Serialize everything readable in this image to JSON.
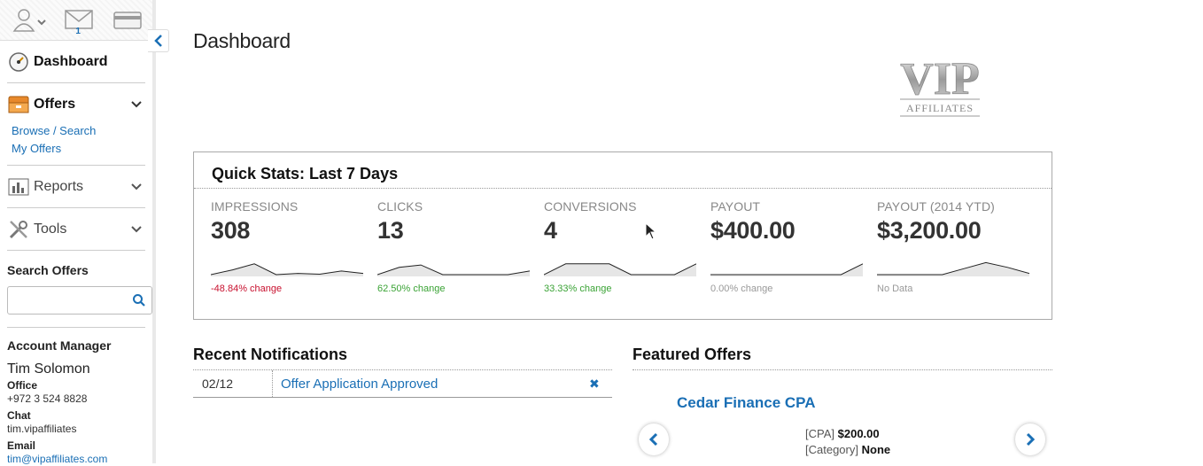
{
  "sidebar": {
    "topbar": {
      "messages_count": "1"
    },
    "nav": {
      "dashboard": "Dashboard",
      "offers": "Offers",
      "offers_sub": [
        "Browse / Search",
        "My Offers"
      ],
      "reports": "Reports",
      "tools": "Tools"
    },
    "search": {
      "label": "Search Offers",
      "value": ""
    },
    "account_manager": {
      "heading": "Account Manager",
      "name": "Tim Solomon",
      "office_label": "Office",
      "office": "+972 3 524 8828",
      "chat_label": "Chat",
      "chat": "tim.vipaffiliates",
      "email_label": "Email",
      "email": "tim@vipaffiliates.com"
    }
  },
  "main": {
    "title": "Dashboard",
    "logo": {
      "top": "VIP",
      "bottom": "AFFILIATES"
    },
    "quick_stats": {
      "title": "Quick Stats: Last 7 Days",
      "items": [
        {
          "label": "IMPRESSIONS",
          "value": "308",
          "change": "-48.84% change",
          "change_type": "neg",
          "spark": [
            0.0,
            0.2,
            0.45,
            0.0,
            0.05,
            0.02,
            0.15,
            0.05
          ]
        },
        {
          "label": "CLICKS",
          "value": "13",
          "change": "62.50% change",
          "change_type": "pos",
          "spark": [
            0.0,
            0.3,
            0.4,
            0.0,
            0.0,
            0.0,
            0.0,
            0.15
          ]
        },
        {
          "label": "CONVERSIONS",
          "value": "4",
          "change": "33.33% change",
          "change_type": "pos",
          "spark": [
            0.0,
            0.45,
            0.45,
            0.45,
            0.0,
            0.0,
            0.0,
            0.45
          ]
        },
        {
          "label": "PAYOUT",
          "value": "$400.00",
          "change": "0.00% change",
          "change_type": "neutral",
          "spark": [
            0.0,
            0.0,
            0.0,
            0.0,
            0.0,
            0.0,
            0.0,
            0.45
          ]
        },
        {
          "label": "PAYOUT (2014 YTD)",
          "value": "$3,200.00",
          "change": "No Data",
          "change_type": "neutral",
          "spark": [
            0.0,
            0.0,
            0.0,
            0.0,
            0.25,
            0.5,
            0.3,
            0.05
          ]
        }
      ]
    },
    "notifications": {
      "title": "Recent Notifications",
      "rows": [
        {
          "date": "02/12",
          "message": "Offer Application Approved"
        }
      ]
    },
    "featured": {
      "title": "Featured Offers",
      "offer_name": "Cedar Finance CPA",
      "type_label": "[CPA]",
      "type_value": "$200.00",
      "category_label": "[Category]",
      "category_value": "None"
    }
  },
  "colors": {
    "link": "#1a6fb5",
    "negative": "#c8102e",
    "positive": "#3aa335",
    "muted": "#999999"
  }
}
